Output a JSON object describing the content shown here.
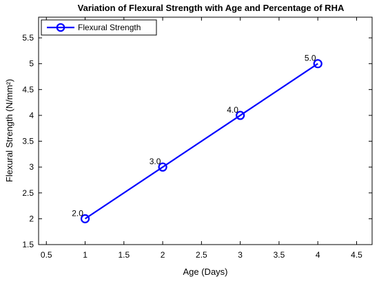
{
  "chart_data": {
    "type": "line",
    "title": "Variation of Flexural Strength with Age and Percentage of RHA",
    "xlabel": "Age (Days)",
    "ylabel": "Flexural Strength (N/mm²)",
    "xlim": [
      0.4,
      4.7
    ],
    "ylim": [
      1.5,
      5.9
    ],
    "x_ticks": [
      0.5,
      1,
      1.5,
      2,
      2.5,
      3,
      3.5,
      4,
      4.5
    ],
    "x_tick_labels": [
      "0.5",
      "1",
      "1.5",
      "2",
      "2.5",
      "3",
      "3.5",
      "4",
      "4.5"
    ],
    "y_ticks": [
      1.5,
      2,
      2.5,
      3,
      3.5,
      4,
      4.5,
      5,
      5.5
    ],
    "y_tick_labels": [
      "1.5",
      "2",
      "2.5",
      "3",
      "3.5",
      "4",
      "4.5",
      "5",
      "5.5"
    ],
    "grid": false,
    "legend_position": "top-left",
    "series": [
      {
        "name": "Flexural Strength",
        "x": [
          1,
          2,
          3,
          4
        ],
        "y": [
          2.0,
          3.0,
          4.0,
          5.0
        ],
        "data_labels": [
          "2.0",
          "3.0",
          "4.0",
          "5.0"
        ],
        "color": "#0000ff",
        "marker": "circle"
      }
    ]
  }
}
